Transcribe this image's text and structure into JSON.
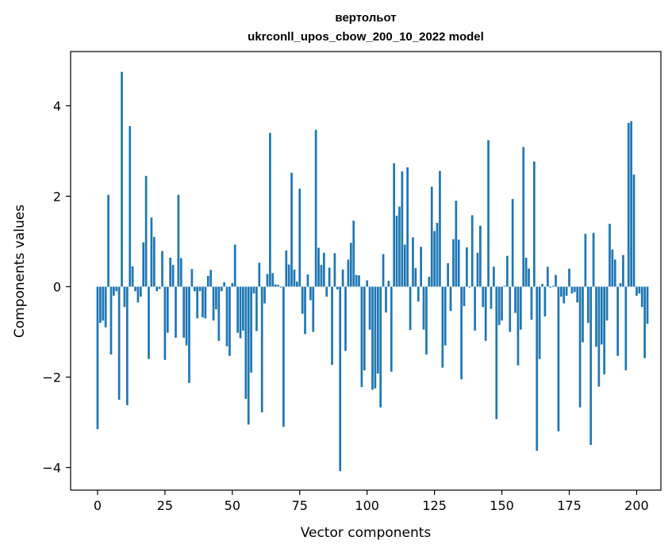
{
  "chart_data": {
    "type": "bar",
    "title_line1": "вертольот",
    "title_line2": "ukrconll_upos_cbow_200_10_2022 model",
    "xlabel": "Vector components",
    "ylabel": "Components values",
    "xlim": [
      -10,
      209
    ],
    "ylim": [
      -4.5,
      5.2
    ],
    "xticks": [
      0,
      25,
      50,
      75,
      100,
      125,
      150,
      175,
      200
    ],
    "xtick_labels": [
      "0",
      "25",
      "50",
      "75",
      "100",
      "125",
      "150",
      "175",
      "200"
    ],
    "yticks": [
      -4,
      -2,
      0,
      2,
      4
    ],
    "ytick_labels": [
      "−4",
      "−2",
      "0",
      "2",
      "4"
    ],
    "color": "#1f77b4",
    "values": [
      -3.15,
      -0.8,
      -0.75,
      -0.9,
      2.03,
      -1.5,
      -0.2,
      -0.1,
      -2.5,
      4.75,
      -0.45,
      -2.62,
      3.55,
      0.45,
      -0.1,
      -0.35,
      -0.22,
      0.98,
      2.45,
      -1.6,
      1.53,
      1.1,
      -0.1,
      -0.05,
      0.79,
      -1.62,
      -1.02,
      0.64,
      0.48,
      -1.13,
      2.03,
      0.63,
      -1.13,
      -1.3,
      -2.13,
      0.39,
      -0.1,
      -0.7,
      -0.1,
      -0.68,
      -0.7,
      0.24,
      0.37,
      -0.75,
      -0.5,
      -1.2,
      -0.1,
      0.1,
      -1.32,
      -1.53,
      0.08,
      0.93,
      -1.02,
      -1.14,
      -0.97,
      -2.48,
      -3.05,
      -1.9,
      -0.15,
      -0.98,
      0.53,
      -2.78,
      -0.37,
      0.28,
      3.4,
      0.3,
      0.05,
      0.04,
      -0.02,
      -3.1,
      0.8,
      0.49,
      2.52,
      0.38,
      0.11,
      2.17,
      -0.6,
      -1.05,
      0.27,
      -0.3,
      -1.0,
      3.47,
      0.86,
      0.48,
      0.75,
      -0.22,
      0.42,
      -1.73,
      0.74,
      -0.06,
      -4.08,
      0.38,
      -1.42,
      0.6,
      0.97,
      1.46,
      0.26,
      0.25,
      -2.22,
      -1.85,
      0.14,
      -0.95,
      -2.28,
      -2.25,
      -1.92,
      -2.67,
      0.72,
      -0.57,
      0.13,
      -1.88,
      2.73,
      1.57,
      1.77,
      2.55,
      0.93,
      2.64,
      -0.96,
      1.09,
      0.41,
      -0.33,
      0.88,
      -0.95,
      -1.5,
      0.22,
      2.21,
      1.23,
      1.41,
      2.56,
      -1.79,
      -1.3,
      0.52,
      -0.54,
      1.05,
      1.9,
      1.04,
      -2.05,
      -0.43,
      0.87,
      -0.02,
      1.58,
      -0.97,
      0.75,
      1.35,
      -0.45,
      -1.2,
      3.24,
      -0.49,
      0.44,
      -2.93,
      -0.85,
      -0.75,
      0.02,
      0.68,
      -1.0,
      1.94,
      -0.58,
      -1.74,
      -0.95,
      3.09,
      0.64,
      0.4,
      -0.73,
      2.77,
      -3.63,
      -1.6,
      0.06,
      -0.66,
      0.44,
      -0.02,
      0.02,
      0.26,
      -3.2,
      -0.22,
      -0.37,
      -0.2,
      0.4,
      -0.15,
      -0.12,
      -0.35,
      -2.67,
      -1.23,
      1.17,
      -0.8,
      -3.5,
      1.19,
      -1.33,
      -2.21,
      -1.28,
      -1.94,
      -0.75,
      1.39,
      0.82,
      0.6,
      -1.53,
      0.08,
      0.7,
      -1.85,
      3.62,
      3.66,
      2.48,
      -0.2,
      -0.15,
      -0.45,
      -1.58,
      -0.82
    ]
  }
}
